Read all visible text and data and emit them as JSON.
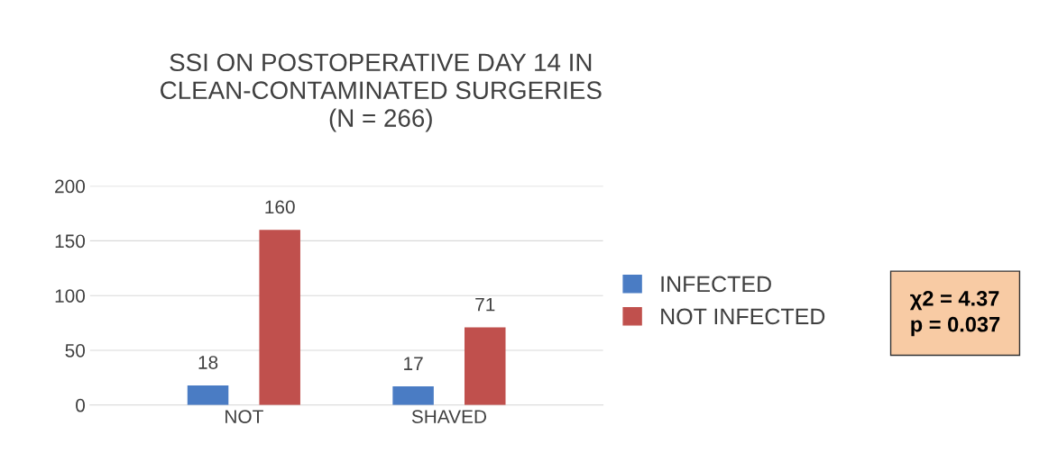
{
  "chart_data": {
    "type": "bar",
    "title": "SSI ON POSTOPERATIVE DAY 14 IN\nCLEAN-CONTAMINATED SURGERIES\n(N = 266)",
    "categories": [
      "NOT",
      "SHAVED"
    ],
    "series": [
      {
        "name": "INFECTED",
        "color": "#4a7cc4",
        "values": [
          18,
          17
        ]
      },
      {
        "name": "NOT INFECTED",
        "color": "#c0504d",
        "values": [
          160,
          71
        ]
      }
    ],
    "ylim": [
      0,
      200
    ],
    "yticks": [
      0,
      50,
      100,
      150,
      200
    ],
    "grid": "y",
    "legend": "right",
    "data_labels": true,
    "annotations": [
      "χ2 = 4.37\np = 0.037"
    ]
  }
}
